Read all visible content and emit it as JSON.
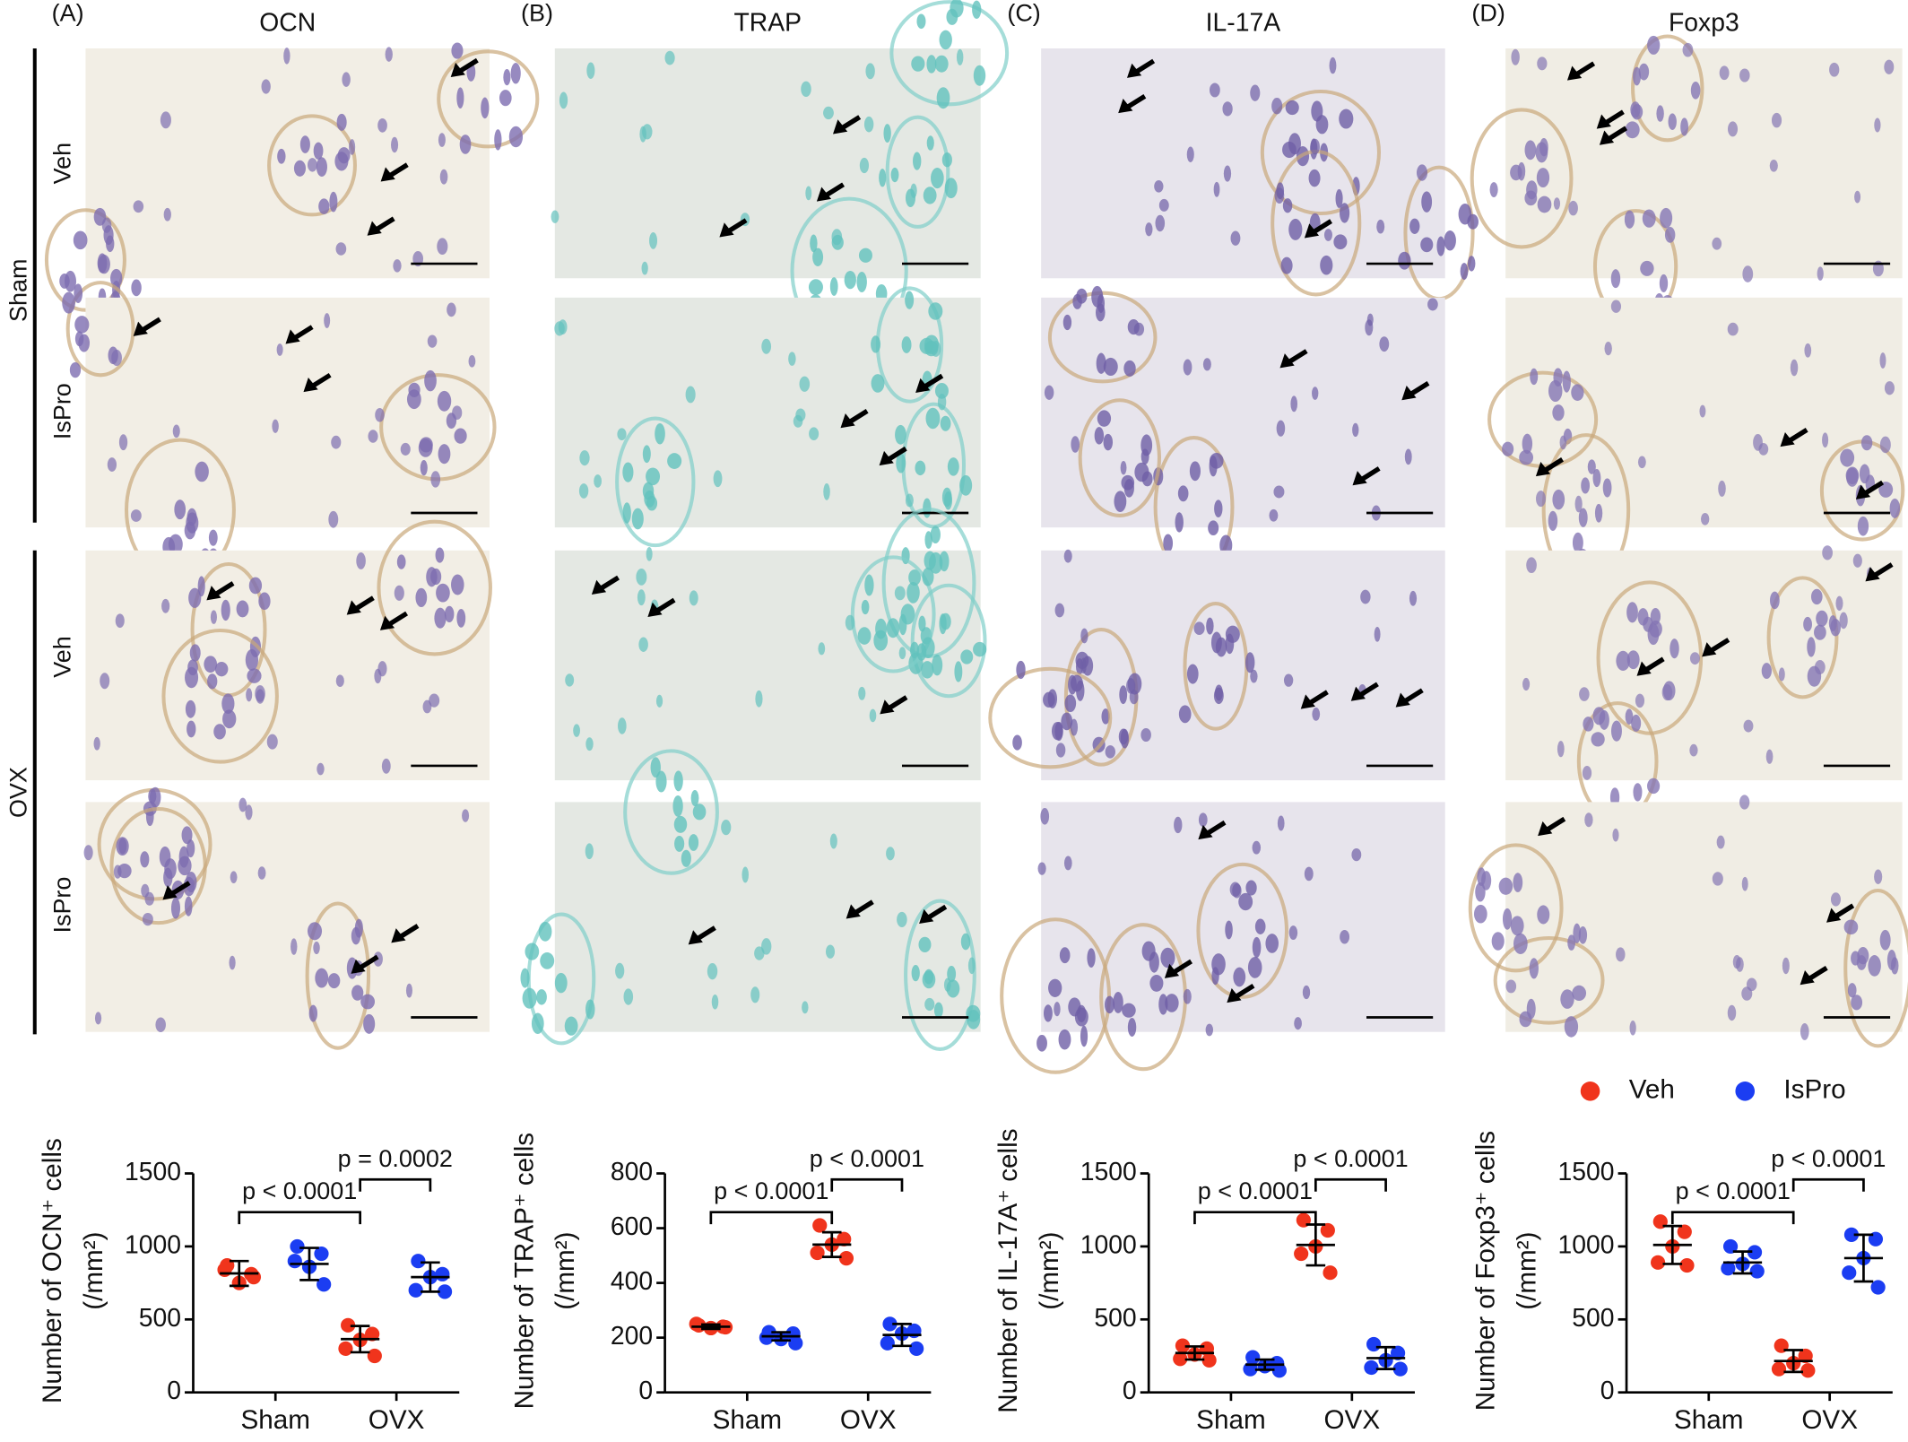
{
  "figure": {
    "panels": [
      "(A)",
      "(B)",
      "(C)",
      "(D)"
    ],
    "stains": [
      "OCN",
      "TRAP",
      "IL-17A",
      "Foxp3"
    ],
    "groups": [
      "Sham",
      "OVX"
    ],
    "rows": [
      "Veh",
      "IsPro",
      "Veh",
      "IsPro"
    ]
  },
  "chart_data": [
    {
      "type": "scatter",
      "ylabel": [
        "Number of OCN⁺ cells",
        "(/mm²)"
      ],
      "categories": [
        "Sham",
        "OVX"
      ],
      "ylim": [
        0,
        1500
      ],
      "yticks": [
        0,
        500,
        1000,
        1500
      ],
      "legend": false,
      "series": [
        {
          "name": "Veh",
          "color": "#f0341c",
          "values": [
            [
              870,
              810,
              750,
              840,
              790
            ],
            [
              460,
              400,
              360,
              300,
              250
            ]
          ],
          "mean": [
            815,
            365
          ],
          "sd": [
            85,
            90
          ]
        },
        {
          "name": "IsPro",
          "color": "#1b3df2",
          "values": [
            [
              1000,
              950,
              860,
              900,
              740
            ],
            [
              900,
              810,
              790,
              700,
              690
            ]
          ],
          "mean": [
            880,
            790
          ],
          "sd": [
            110,
            100
          ]
        }
      ],
      "annotations": [
        "p < 0.0001",
        "p = 0.0002"
      ]
    },
    {
      "type": "scatter",
      "ylabel": [
        "Number of TRAP⁺ cells",
        "(/mm²)"
      ],
      "categories": [
        "Sham",
        "OVX"
      ],
      "ylim": [
        0,
        800
      ],
      "yticks": [
        0,
        200,
        400,
        600,
        800
      ],
      "legend": false,
      "series": [
        {
          "name": "Veh",
          "color": "#f0341c",
          "values": [
            [
              245,
              240,
              235,
              250,
              238
            ],
            [
              610,
              560,
              540,
              510,
              490
            ]
          ],
          "mean": [
            240,
            540
          ],
          "sd": [
            8,
            45
          ]
        },
        {
          "name": "IsPro",
          "color": "#1b3df2",
          "values": [
            [
              220,
              215,
              195,
              200,
              180
            ],
            [
              250,
              225,
              215,
              180,
              160
            ]
          ],
          "mean": [
            205,
            210
          ],
          "sd": [
            15,
            40
          ]
        }
      ],
      "annotations": [
        "p < 0.0001",
        "p < 0.0001"
      ]
    },
    {
      "type": "scatter",
      "ylabel": [
        "Number of IL-17A⁺ cells",
        "(/mm²)"
      ],
      "categories": [
        "Sham",
        "OVX"
      ],
      "ylim": [
        0,
        1500
      ],
      "yticks": [
        0,
        500,
        1000,
        1500
      ],
      "legend": false,
      "series": [
        {
          "name": "Veh",
          "color": "#f0341c",
          "values": [
            [
              320,
              300,
              260,
              230,
              220
            ],
            [
              1180,
              1110,
              1000,
              950,
              820
            ]
          ],
          "mean": [
            270,
            1010
          ],
          "sd": [
            45,
            140
          ]
        },
        {
          "name": "IsPro",
          "color": "#1b3df2",
          "values": [
            [
              240,
              200,
              180,
              160,
              150
            ],
            [
              330,
              270,
              220,
              170,
              160
            ]
          ],
          "mean": [
            190,
            235
          ],
          "sd": [
            35,
            75
          ]
        }
      ],
      "annotations": [
        "p < 0.0001",
        "p < 0.0001"
      ]
    },
    {
      "type": "scatter",
      "ylabel": [
        "Number of Foxp3⁺ cells",
        "(/mm²)"
      ],
      "categories": [
        "Sham",
        "OVX"
      ],
      "ylim": [
        0,
        1500
      ],
      "yticks": [
        0,
        500,
        1000,
        1500
      ],
      "legend": true,
      "series": [
        {
          "name": "Veh",
          "color": "#f0341c",
          "values": [
            [
              1170,
              1100,
              1000,
              890,
              870
            ],
            [
              320,
              250,
              200,
              160,
              150
            ]
          ],
          "mean": [
            1010,
            215
          ],
          "sd": [
            130,
            75
          ]
        },
        {
          "name": "IsPro",
          "color": "#1b3df2",
          "values": [
            [
              1000,
              960,
              880,
              850,
              830
            ],
            [
              1080,
              1050,
              920,
              820,
              720
            ]
          ],
          "mean": [
            890,
            920
          ],
          "sd": [
            75,
            160
          ]
        }
      ],
      "annotations": [
        "p < 0.0001",
        "p < 0.0001"
      ]
    }
  ]
}
